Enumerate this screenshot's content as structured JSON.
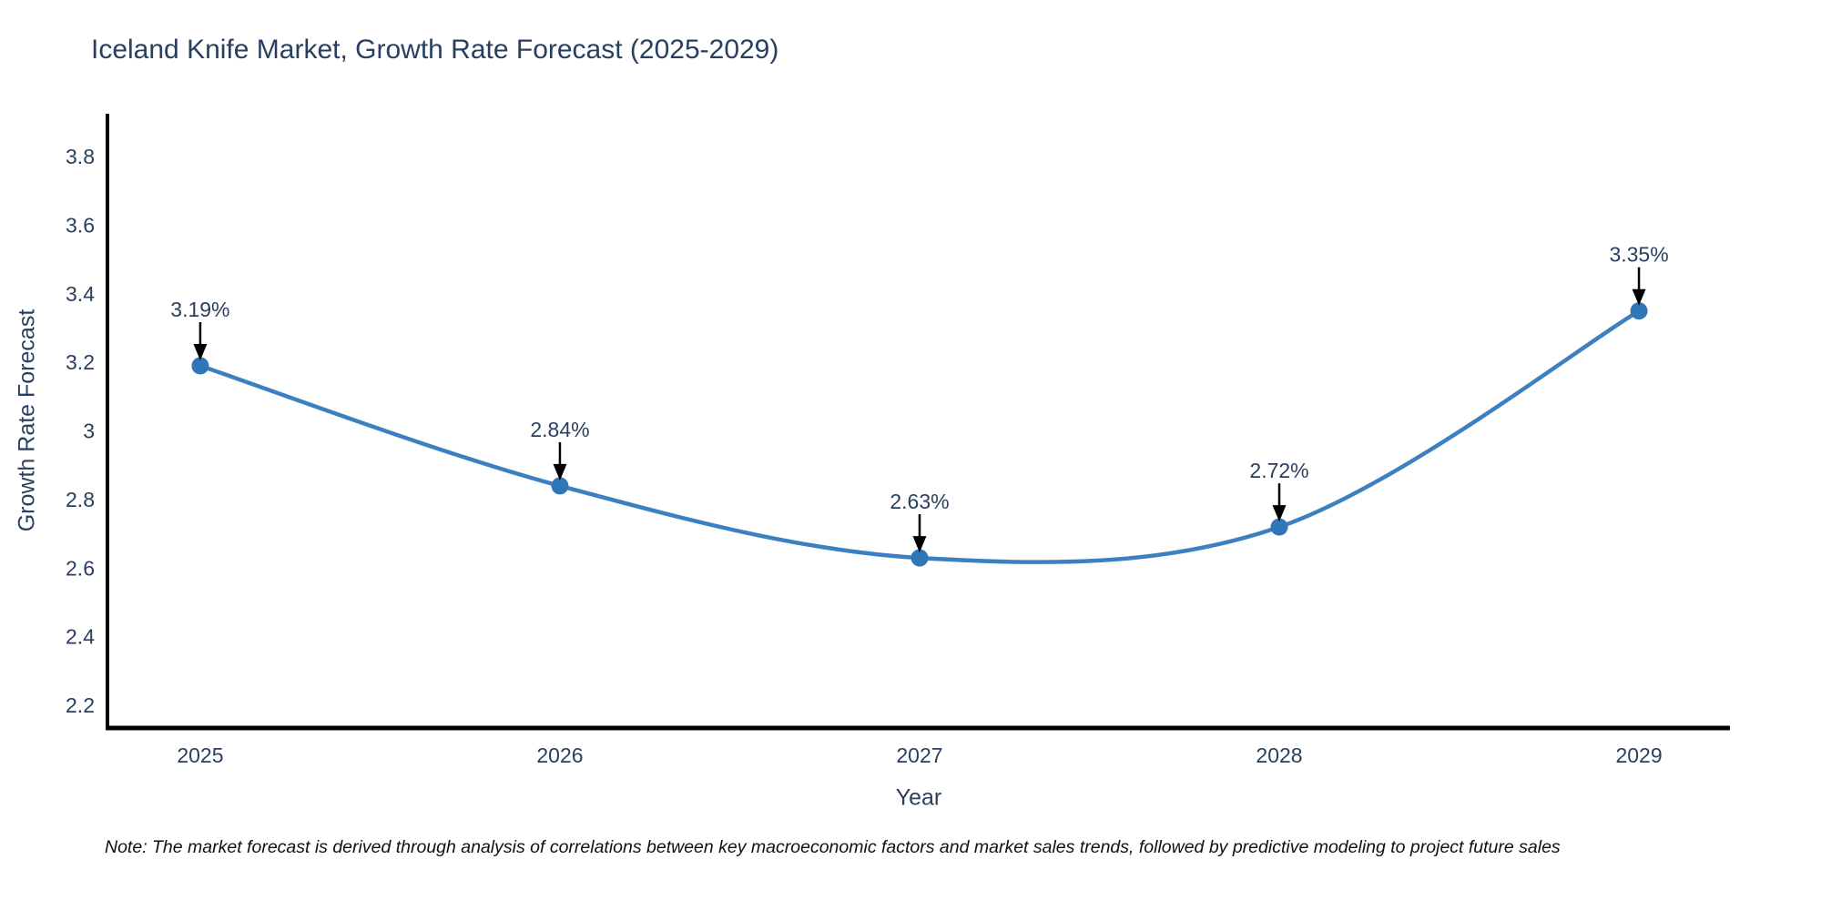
{
  "title": "Iceland Knife Market, Growth Rate Forecast (2025-2029)",
  "footnote": "Note: The market forecast is derived through analysis of correlations between key macroeconomic factors and market sales trends, followed by predictive modeling to project future sales",
  "chart_data": {
    "type": "line",
    "title": "Iceland Knife Market, Growth Rate Forecast (2025-2029)",
    "xlabel": "Year",
    "ylabel": "Growth Rate Forecast",
    "x": [
      2025,
      2026,
      2027,
      2028,
      2029
    ],
    "categories": [
      "2025",
      "2026",
      "2027",
      "2028",
      "2029"
    ],
    "series": [
      {
        "name": "Growth Rate Forecast",
        "values": [
          3.19,
          2.84,
          2.63,
          2.72,
          3.35
        ]
      }
    ],
    "point_labels": [
      "3.19%",
      "2.84%",
      "2.63%",
      "2.72%",
      "3.35%"
    ],
    "line_shape": "spline",
    "grid": false,
    "legend_position": "none",
    "xlim": [
      2024.742,
      2029.253
    ],
    "ylim": [
      2.134,
      3.925
    ],
    "yticks": {
      "values": [
        2.2,
        2.4,
        2.6,
        2.8,
        3.0,
        3.2,
        3.4,
        3.6,
        3.8
      ],
      "labels": [
        "2.2",
        "2.4",
        "2.6",
        "2.8",
        "3",
        "3.2",
        "3.4",
        "3.6",
        "3.8"
      ]
    },
    "colors": {
      "line": "#3d80c0",
      "marker": "#3177b8",
      "axis": "#000000",
      "tick_text": "#2a3f5f",
      "annotation_text": "#2a3f5f",
      "annotation_arrow": "#000000"
    }
  }
}
